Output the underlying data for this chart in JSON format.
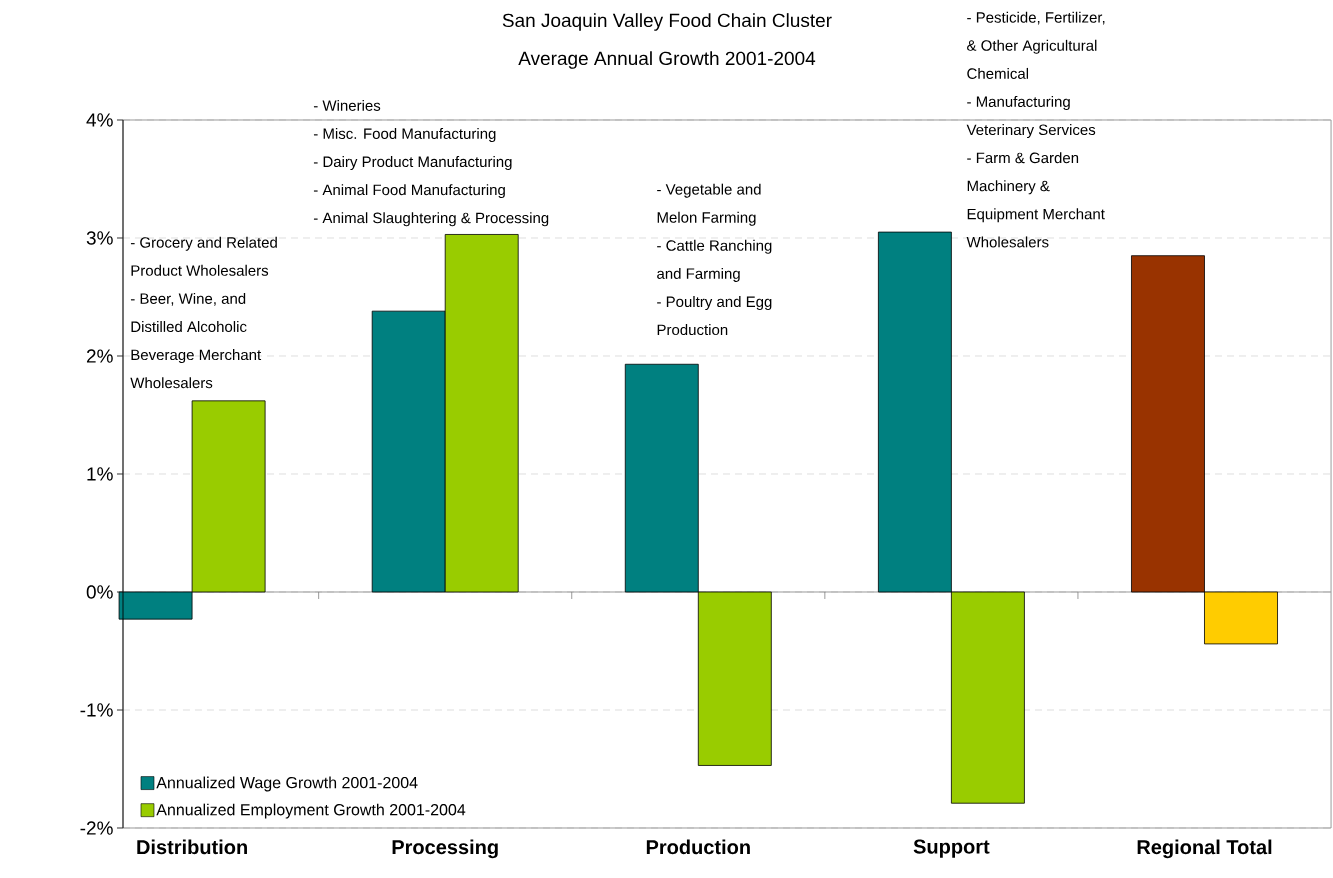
{
  "chart_data": {
    "type": "bar",
    "title": "San Joaquin Valley Food Chain Cluster",
    "subtitle": "Average Annual Growth 2001-2004",
    "categories": [
      "Distribution",
      "Processing",
      "Production",
      "Support",
      "Regional Total"
    ],
    "series": [
      {
        "name": "Annualized Wage Growth 2001-2004",
        "color": "#008080",
        "colors": [
          "#008080",
          "#008080",
          "#008080",
          "#008080",
          "#993300"
        ],
        "values": [
          -0.23,
          2.38,
          1.93,
          3.05,
          2.85
        ]
      },
      {
        "name": "Annualized Employment Growth 2001-2004",
        "color": "#99cc00",
        "colors": [
          "#99cc00",
          "#99cc00",
          "#99cc00",
          "#99cc00",
          "#ffcc00"
        ],
        "values": [
          1.62,
          3.03,
          -1.47,
          -1.79,
          -0.44
        ]
      }
    ],
    "ylim": [
      -2,
      4
    ],
    "yticks": [
      {
        "value": -2,
        "label": "-2%"
      },
      {
        "value": -1,
        "label": "-1%"
      },
      {
        "value": 0,
        "label": "0%"
      },
      {
        "value": 1,
        "label": "1%"
      },
      {
        "value": 2,
        "label": "2%"
      },
      {
        "value": 3,
        "label": "3%"
      },
      {
        "value": 4,
        "label": "4%"
      }
    ],
    "grid": "y",
    "legend": "bottom left",
    "annotations": [
      "- Grocery and Related",
      "Product Wholesalers",
      "- Beer, Wine, and",
      "Distilled Alcoholic",
      "Beverage Merchant",
      "Wholesalers",
      "- Wineries",
      "- Misc. Food Manufacturing",
      "- Dairy Product Manufacturing",
      "- Animal Food Manufacturing",
      "- Animal Slaughtering & Processing",
      "- Vegetable and",
      "Melon Farming",
      "- Cattle Ranching",
      "and Farming",
      "- Poultry and Egg",
      "Production",
      "- Pesticide, Fertilizer,",
      "& Other Agricultural",
      "Chemical",
      "- Manufacturing",
      "Veterinary Services",
      "- Farm & Garden",
      "Machinery &",
      "Equipment Merchant",
      "Wholesalers"
    ]
  }
}
